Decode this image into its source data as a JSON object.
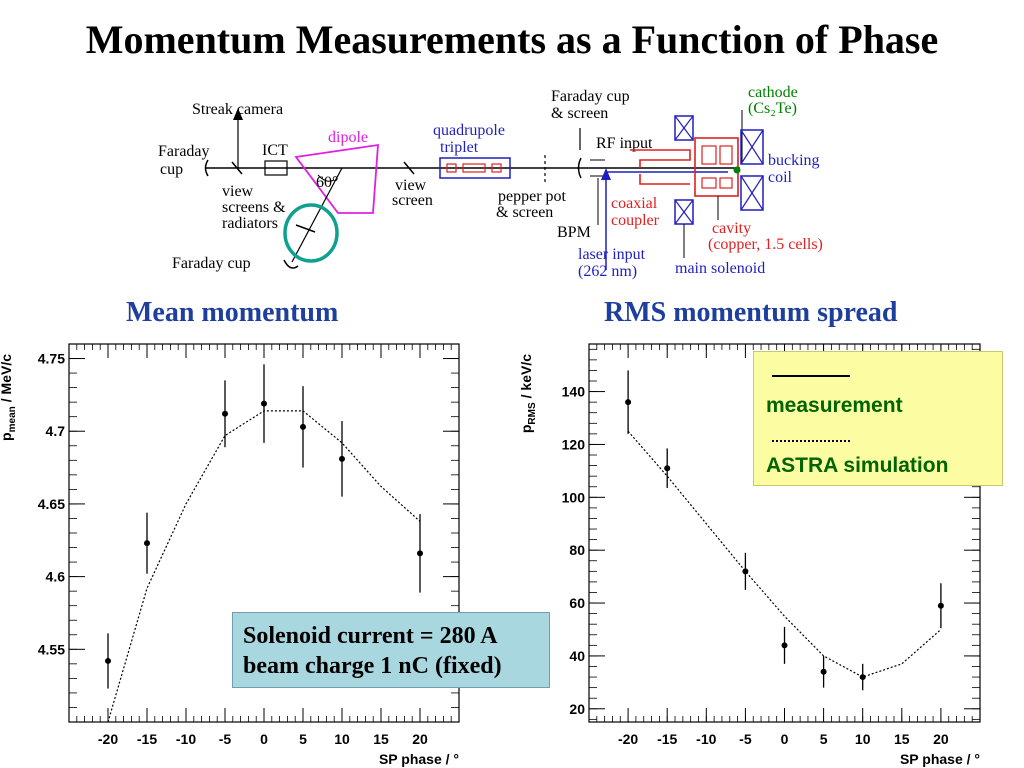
{
  "title": "Momentum Measurements as a Function of Phase",
  "beamline": {
    "streak_camera": "Streak camera",
    "faraday_cup_left_1": "Faraday",
    "faraday_cup_left_2": "cup",
    "ict": "ICT",
    "dipole": "dipole",
    "angle": "60°",
    "view_screens_1": "view",
    "view_screens_2": "screens &",
    "view_screens_3": "radiators",
    "faraday_cup_bottom": "Faraday cup",
    "quadrupole_1": "quadrupole",
    "quadrupole_2": "triplet",
    "view_screen_1": "view",
    "view_screen_2": "screen",
    "pepper_pot_1": "pepper pot",
    "pepper_pot_2": "& screen",
    "faraday_screen_1": "Faraday cup",
    "faraday_screen_2": "& screen",
    "rf_input": "RF input",
    "coaxial_1": "coaxial",
    "coaxial_2": "coupler",
    "bpm": "BPM",
    "laser_1": "laser input",
    "laser_2": "(262 nm)",
    "main_solenoid": "main solenoid",
    "cavity_1": "cavity",
    "cavity_2": "(copper, 1.5 cells)",
    "cathode_1": "cathode",
    "cathode_2": "(Cs₂Te)",
    "bucking_1": "bucking",
    "bucking_2": "coil",
    "colors": {
      "blue": "#1f1fbf",
      "red": "#e02020",
      "magenta": "#e020e0",
      "green": "#008000",
      "teal": "#10a090"
    }
  },
  "left_title": "Mean momentum",
  "right_title": "RMS momentum spread",
  "info_box": {
    "line1": "Solenoid current = 280 A",
    "line2": "beam charge 1 nC (fixed)"
  },
  "legend": {
    "measurement": "measurement",
    "simulation": "ASTRA simulation"
  },
  "chart_data": [
    {
      "type": "scatter",
      "title": "Mean momentum",
      "xlabel": "SP phase / °",
      "ylabel_main": "p",
      "ylabel_sub": "mean",
      "ylabel_unit": "/ MeV/c",
      "xlim": [
        -25,
        25
      ],
      "ylim": [
        4.5,
        4.76
      ],
      "xticks": [
        -20,
        -15,
        -10,
        -5,
        0,
        5,
        10,
        15,
        20
      ],
      "yticks": [
        4.55,
        4.6,
        4.65,
        4.7,
        4.75
      ],
      "ytick_labels": [
        "4.55",
        "4.6",
        "4.65",
        "4.7",
        "4.75"
      ],
      "series": [
        {
          "kind": "measurement",
          "x": [
            -20,
            -15,
            -5,
            0,
            5,
            10,
            20
          ],
          "y": [
            4.542,
            4.623,
            4.712,
            4.719,
            4.703,
            4.681,
            4.616
          ],
          "err": [
            0.019,
            0.021,
            0.023,
            0.027,
            0.028,
            0.026,
            0.027
          ]
        },
        {
          "kind": "simulation",
          "x": [
            -20,
            -15,
            -10,
            -5,
            0,
            5,
            10,
            15,
            20
          ],
          "y": [
            4.5,
            4.592,
            4.65,
            4.697,
            4.714,
            4.714,
            4.692,
            4.662,
            4.638
          ]
        }
      ]
    },
    {
      "type": "scatter",
      "title": "RMS momentum spread",
      "xlabel": "SP phase / °",
      "ylabel_main": "p",
      "ylabel_sub": "RMS",
      "ylabel_unit": "/ keV/c",
      "xlim": [
        -25,
        25
      ],
      "ylim": [
        15,
        158
      ],
      "xticks": [
        -20,
        -15,
        -10,
        -5,
        0,
        5,
        10,
        15,
        20
      ],
      "yticks": [
        20,
        40,
        60,
        80,
        100,
        120,
        140
      ],
      "ytick_labels": [
        "20",
        "40",
        "60",
        "80",
        "100",
        "120",
        "140"
      ],
      "series": [
        {
          "kind": "measurement",
          "x": [
            -20,
            -15,
            -5,
            0,
            5,
            10,
            20
          ],
          "y": [
            136,
            111,
            72,
            44,
            34,
            32,
            59
          ],
          "err": [
            12,
            7.5,
            7,
            7,
            6,
            5,
            8.5
          ]
        },
        {
          "kind": "simulation",
          "x": [
            -20,
            -15,
            -10,
            -5,
            0,
            5,
            10,
            15,
            20
          ],
          "y": [
            125,
            108,
            90,
            72,
            55,
            40,
            32,
            37,
            50
          ]
        }
      ]
    }
  ]
}
